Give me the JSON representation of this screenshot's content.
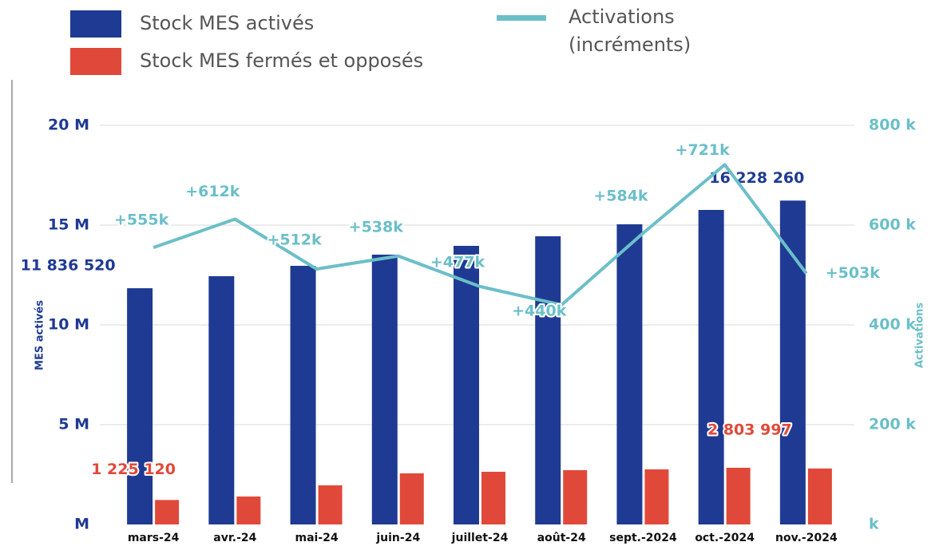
{
  "chart_data": {
    "type": "bar",
    "categories": [
      "mars-24",
      "avr.-24",
      "mai-24",
      "juin-24",
      "juillet-24",
      "août-24",
      "sept.-2024",
      "oct.-2024",
      "nov.-2024"
    ],
    "series": [
      {
        "name": "Stock MES activés",
        "color": "#1f3a93",
        "type": "bar",
        "values": [
          11836520,
          12440000,
          12960000,
          13520000,
          13960000,
          14440000,
          15040000,
          15760000,
          16228260
        ],
        "value_labels": [
          "11 836 520",
          null,
          null,
          null,
          null,
          null,
          null,
          null,
          "16 228 260"
        ]
      },
      {
        "name": "Stock MES fermés et opposés",
        "color": "#e0493a",
        "type": "bar",
        "values": [
          1225120,
          1400000,
          1960000,
          2560000,
          2640000,
          2720000,
          2760000,
          2840000,
          2803997
        ],
        "value_labels": [
          "1 225 120",
          null,
          null,
          null,
          null,
          null,
          null,
          null,
          "2 803 997"
        ]
      },
      {
        "name": "Activations (incréments)",
        "color": "#6bbfc8",
        "type": "line",
        "axis": "y2",
        "values": [
          555000,
          612000,
          512000,
          538000,
          477000,
          440000,
          584000,
          721000,
          503000
        ],
        "value_labels": [
          "+555k",
          "+612k",
          "+512k",
          "+538k",
          "+477k",
          "+440k",
          "+584k",
          "+721k",
          "+503k"
        ]
      }
    ],
    "y_label": "MES activés",
    "y2_label": "Activations",
    "ylim": [
      0,
      20000000
    ],
    "yticks": [
      {
        "value": 0,
        "label": "M"
      },
      {
        "value": 5000000,
        "label": "5 M"
      },
      {
        "value": 10000000,
        "label": "10 M"
      },
      {
        "value": 15000000,
        "label": "15 M"
      },
      {
        "value": 20000000,
        "label": "20 M"
      }
    ],
    "y2lim": [
      0,
      800000
    ],
    "y2ticks": [
      {
        "value": 0,
        "label": "k"
      },
      {
        "value": 200000,
        "label": "200 k"
      },
      {
        "value": 400000,
        "label": "400 k"
      },
      {
        "value": 600000,
        "label": "600 k"
      },
      {
        "value": 800000,
        "label": "800 k"
      }
    ],
    "grid": true,
    "legend": "top"
  }
}
